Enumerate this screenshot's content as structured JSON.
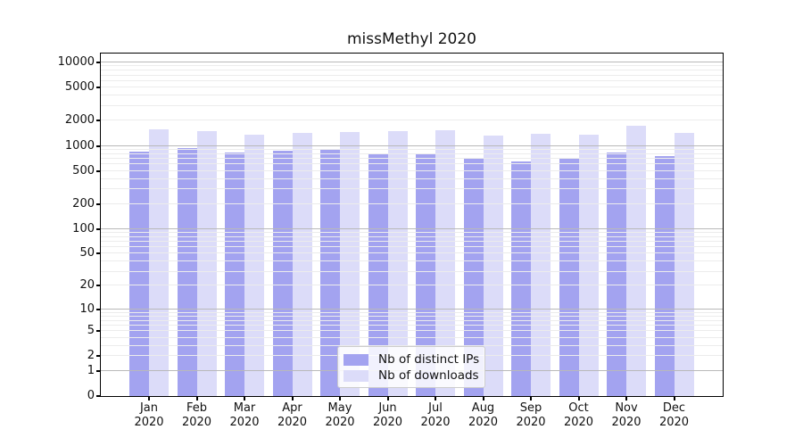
{
  "title": "missMethyl 2020",
  "chart_data": {
    "type": "bar",
    "title": "missMethyl 2020",
    "categories": [
      "Jan",
      "Feb",
      "Mar",
      "Apr",
      "May",
      "Jun",
      "Jul",
      "Aug",
      "Sep",
      "Oct",
      "Nov",
      "Dec"
    ],
    "category_year": "2020",
    "series": [
      {
        "name": "Nb of distinct IPs",
        "values": [
          855,
          945,
          825,
          870,
          885,
          815,
          790,
          715,
          655,
          725,
          835,
          750
        ]
      },
      {
        "name": "Nb of downloads",
        "values": [
          1570,
          1510,
          1370,
          1445,
          1470,
          1510,
          1545,
          1335,
          1380,
          1355,
          1730,
          1425
        ]
      }
    ],
    "y_ticks": [
      10000,
      5000,
      2000,
      1000,
      500,
      200,
      100,
      50,
      20,
      10,
      5,
      2,
      1,
      0
    ],
    "y_scale": "log10(value + 1)",
    "ylim": [
      0,
      12800
    ],
    "xlabel": "",
    "ylabel": "",
    "grid": {
      "orientation": "horizontal",
      "major": "powers of 10",
      "minor": "2-9 steps per decade",
      "on_top_of_bars": true
    },
    "legend_position": "inside bottom-center"
  },
  "legend": {
    "items": [
      {
        "label": "Nb of distinct IPs"
      },
      {
        "label": "Nb of downloads"
      }
    ]
  },
  "colors": {
    "bar_distinct_ips": "#a3a3f0",
    "bar_downloads": "#dcdcf9",
    "grid_major": "#b9b9b9",
    "grid_minor": "#ececec",
    "axis": "#000000",
    "legend_border": "#cccccc",
    "text": "#111111"
  }
}
